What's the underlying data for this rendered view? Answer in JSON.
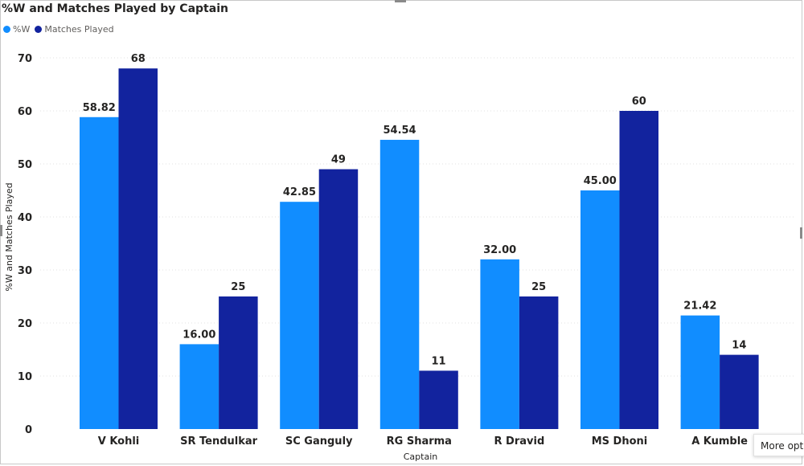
{
  "chart_data": {
    "type": "bar",
    "title": "%W and Matches Played by Captain",
    "xlabel": "Captain",
    "ylabel": "%W and Matches Played",
    "ylim": [
      0,
      70
    ],
    "yticks": [
      0,
      10,
      20,
      30,
      40,
      50,
      60,
      70
    ],
    "categories": [
      "V Kohli",
      "SR Tendulkar",
      "SC Ganguly",
      "RG Sharma",
      "R Dravid",
      "MS Dhoni",
      "A Kumble"
    ],
    "series": [
      {
        "name": "%W",
        "color": "#118dff",
        "values": [
          58.82,
          16.0,
          42.85,
          54.54,
          32.0,
          45.0,
          21.42
        ],
        "labels": [
          "58.82",
          "16.00",
          "42.85",
          "54.54",
          "32.00",
          "45.00",
          "21.42"
        ]
      },
      {
        "name": "Matches Played",
        "color": "#12239e",
        "values": [
          68,
          25,
          49,
          11,
          25,
          60,
          14
        ],
        "labels": [
          "68",
          "25",
          "49",
          "11",
          "25",
          "60",
          "14"
        ]
      }
    ],
    "legend_position": "top-left",
    "grid": true
  },
  "more_options_label": "More options"
}
